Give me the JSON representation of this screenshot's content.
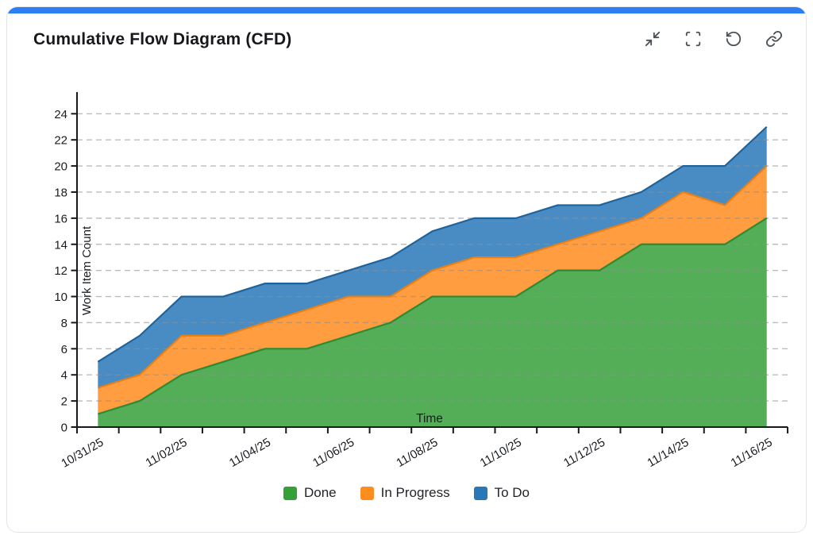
{
  "card": {
    "title": "Cumulative Flow Diagram (CFD)",
    "toolbar": [
      {
        "name": "collapse-button",
        "icon": "minimize-icon"
      },
      {
        "name": "fullscreen-button",
        "icon": "fullscreen-icon"
      },
      {
        "name": "reset-button",
        "icon": "rotate-ccw-icon"
      },
      {
        "name": "link-button",
        "icon": "link-icon"
      }
    ]
  },
  "colors": {
    "accent": "#2b7ff2",
    "axis": "#17191d",
    "grid": "#8f8f8f",
    "text": "#1a1d21",
    "icon": "#4a5158"
  },
  "chart_data": {
    "type": "area",
    "stacked": true,
    "xlabel": "Time",
    "ylabel": "Work Item Count",
    "ylim": [
      0,
      25
    ],
    "yticks": [
      0,
      2,
      4,
      6,
      8,
      10,
      12,
      14,
      16,
      18,
      20,
      22,
      24
    ],
    "grid": "dashed-horizontal",
    "legend_position": "bottom",
    "x": [
      "10/31/25",
      "11/01/25",
      "11/02/25",
      "11/03/25",
      "11/04/25",
      "11/05/25",
      "11/06/25",
      "11/07/25",
      "11/08/25",
      "11/09/25",
      "11/10/25",
      "11/11/25",
      "11/12/25",
      "11/13/25",
      "11/14/25",
      "11/15/25",
      "11/16/25"
    ],
    "xtick_labels_shown": [
      "10/31/25",
      "11/02/25",
      "11/04/25",
      "11/06/25",
      "11/08/25",
      "11/10/25",
      "11/12/25",
      "11/14/25",
      "11/16/25"
    ],
    "series": [
      {
        "name": "Done",
        "color": "#35a03a",
        "line_color": "#2e8a33",
        "values": [
          1,
          2,
          4,
          5,
          6,
          6,
          7,
          8,
          10,
          10,
          10,
          12,
          12,
          14,
          14,
          14,
          16
        ]
      },
      {
        "name": "In Progress",
        "color": "#ff8c1f",
        "line_color": "#ec7f14",
        "values": [
          2,
          2,
          3,
          2,
          2,
          3,
          3,
          2,
          2,
          3,
          3,
          2,
          3,
          2,
          4,
          3,
          4
        ]
      },
      {
        "name": "To Do",
        "color": "#2878b8",
        "line_color": "#1f639c",
        "values": [
          2,
          3,
          3,
          3,
          3,
          2,
          2,
          3,
          3,
          3,
          3,
          3,
          2,
          2,
          2,
          3,
          3
        ]
      }
    ],
    "cumulative_totals": [
      5,
      7,
      10,
      10,
      11,
      11,
      12,
      13,
      15,
      16,
      16,
      17,
      17,
      18,
      20,
      20,
      23
    ]
  }
}
